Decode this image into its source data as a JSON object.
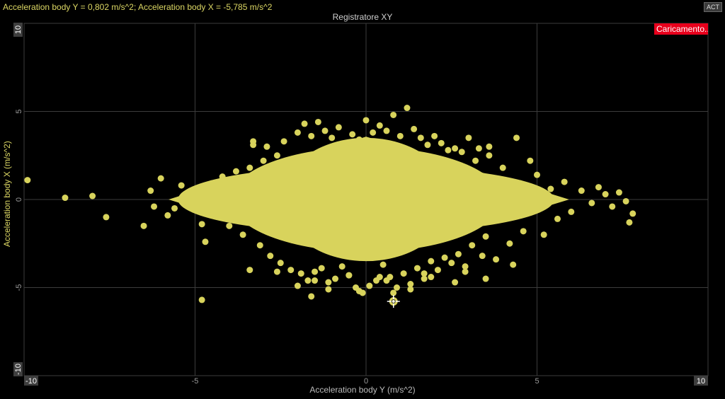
{
  "readout": "Acceleration body Y = 0,802 m/s^2; Acceleration body X = -5,785 m/s^2",
  "act_label": "ACT",
  "loading_label": "Caricamento...",
  "colors": {
    "points": "#d8d35c",
    "grid": "#3c3c3c",
    "background": "#000000",
    "loading": "#e8001c"
  },
  "chart_data": {
    "type": "scatter",
    "title": "Registratore XY",
    "xlabel": "Acceleration body Y (m/s^2)",
    "ylabel": "Acceleration body X (m/s^2)",
    "xlim": [
      -10,
      10
    ],
    "ylim": [
      -10,
      10
    ],
    "xticks": [
      "-10",
      "-5",
      "0",
      "5",
      "10"
    ],
    "yticks": [
      "10",
      "5",
      "0",
      "-5",
      "-10"
    ],
    "grid": true,
    "cursor": {
      "x": 0.802,
      "y": -5.785
    },
    "core_cloud": {
      "x_center": 0.0,
      "y_center": 0.0,
      "x_half_width": 5.5,
      "y_half_width": 3.5
    },
    "series": [
      {
        "x": [
          -9.9,
          -8.8,
          -8.0,
          -7.6,
          -6.5,
          -6.3,
          -6.2,
          -6.0,
          -5.8,
          -5.6,
          -5.4,
          -5.2,
          -5.0,
          -4.8,
          -4.7,
          -4.5,
          -4.3,
          -4.2,
          -4.0,
          -3.8,
          -3.6,
          -3.4,
          -3.3,
          -3.1,
          -3.0,
          -2.9,
          -2.8,
          -2.6,
          -2.5,
          -2.4,
          -2.2,
          -2.0,
          -1.9,
          -1.8,
          -1.7,
          -1.6,
          -1.5,
          -1.4,
          -1.3,
          -1.2,
          -1.1,
          -1.0,
          -0.9,
          -0.8,
          -0.7,
          -0.6,
          -0.5,
          -0.4,
          -0.3,
          -0.2,
          -0.1,
          0.0,
          0.1,
          0.2,
          0.3,
          0.4,
          0.5,
          0.6,
          0.7,
          0.8,
          0.9,
          1.0,
          1.1,
          1.2,
          1.3,
          1.4,
          1.5,
          1.6,
          1.7,
          1.8,
          1.9,
          2.0,
          2.1,
          2.2,
          2.3,
          2.4,
          2.5,
          2.6,
          2.7,
          2.8,
          2.9,
          3.0,
          3.1,
          3.2,
          3.3,
          3.4,
          3.5,
          3.6,
          3.8,
          4.0,
          4.2,
          4.4,
          4.6,
          4.8,
          5.0,
          5.2,
          5.4,
          5.6,
          5.8,
          6.0,
          6.3,
          6.6,
          6.8,
          7.0,
          7.2,
          7.4,
          7.6,
          7.7,
          7.8,
          -4.8,
          -1.6,
          -0.2,
          0.8,
          1.3,
          -2.0,
          -1.1,
          0.6,
          1.9,
          2.6,
          3.5,
          -3.4,
          -2.6,
          -1.5,
          -0.5,
          0.4,
          1.7,
          2.9,
          4.3,
          -3.3,
          3.6
        ],
        "y": [
          1.1,
          0.1,
          0.2,
          -1.0,
          -1.5,
          0.5,
          -0.4,
          1.2,
          -0.9,
          -0.5,
          0.8,
          -0.2,
          0.5,
          -1.4,
          -2.4,
          0.9,
          -0.8,
          1.3,
          -1.5,
          1.6,
          -2.0,
          1.8,
          3.1,
          -2.6,
          2.2,
          3.0,
          -3.2,
          2.5,
          -3.6,
          3.3,
          -4.0,
          3.8,
          -4.2,
          4.3,
          -4.6,
          3.6,
          -4.1,
          4.4,
          -3.9,
          3.9,
          -5.1,
          3.5,
          -4.5,
          4.1,
          -3.8,
          3.0,
          -4.3,
          3.7,
          -5.0,
          3.4,
          -5.3,
          4.5,
          -4.9,
          3.8,
          -4.6,
          4.2,
          -3.7,
          3.9,
          -4.4,
          4.8,
          -5.0,
          3.6,
          -4.2,
          5.2,
          -4.8,
          4.0,
          -3.9,
          3.5,
          -4.5,
          3.1,
          -3.5,
          3.6,
          -4.0,
          3.2,
          -3.3,
          2.8,
          -3.6,
          2.9,
          -3.1,
          2.7,
          -3.8,
          3.5,
          -2.6,
          2.2,
          2.9,
          -3.2,
          -2.1,
          2.5,
          -3.4,
          1.8,
          -2.5,
          3.5,
          -1.8,
          2.2,
          1.4,
          -2.0,
          0.6,
          -1.1,
          1.0,
          -0.7,
          0.5,
          -0.2,
          0.7,
          0.3,
          -0.4,
          0.4,
          -0.1,
          -1.3,
          -0.8,
          -5.7,
          -5.5,
          -5.2,
          -5.3,
          -5.1,
          -4.9,
          -4.7,
          -4.6,
          -4.4,
          -4.7,
          -4.5,
          -4.0,
          -4.1,
          -4.6,
          -4.3,
          -4.4,
          -4.2,
          -4.1,
          -3.7,
          3.3,
          3.0
        ]
      }
    ]
  }
}
